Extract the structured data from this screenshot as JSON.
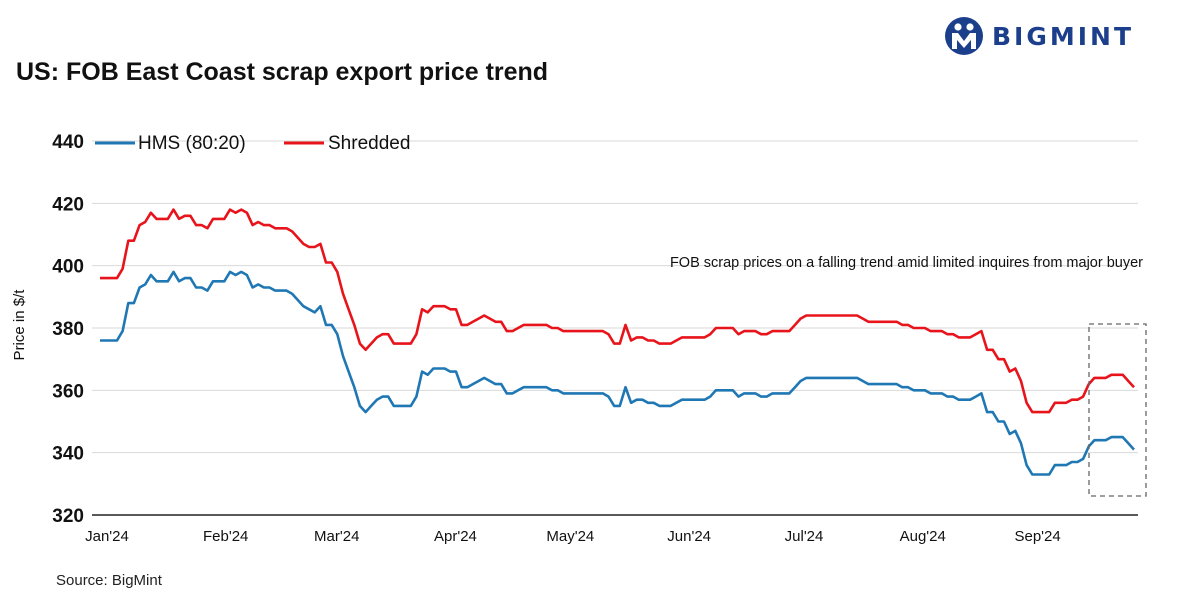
{
  "brand": {
    "name": "BIGMINT",
    "color": "#1c3f8c"
  },
  "title": "US: FOB East Coast scrap export price trend",
  "source": "Source: BigMint",
  "chart_data": {
    "type": "line",
    "title": "US: FOB East Coast scrap export price trend",
    "xlabel": "",
    "ylabel": "Price in $/t",
    "ylim": [
      320,
      440
    ],
    "yticks": [
      320,
      340,
      360,
      380,
      400,
      420,
      440
    ],
    "grid": true,
    "legend_position": "top-left",
    "x_tick_labels": [
      "Jan'24",
      "Feb'24",
      "Mar'24",
      "Apr'24",
      "May'24",
      "Jun'24",
      "Jul'24",
      "Aug'24",
      "Sep'24"
    ],
    "annotation": "FOB scrap prices on a falling trend amid limited inquires from major buyer",
    "series": [
      {
        "name": "HMS (80:20)",
        "color": "#1f77b4",
        "values": [
          376,
          376,
          376,
          376,
          379,
          388,
          388,
          393,
          394,
          397,
          395,
          395,
          395,
          398,
          395,
          396,
          396,
          393,
          393,
          392,
          395,
          395,
          395,
          398,
          397,
          398,
          397,
          393,
          394,
          393,
          393,
          392,
          392,
          392,
          391,
          389,
          387,
          386,
          385,
          387,
          381,
          381,
          378,
          371,
          366,
          361,
          355,
          353,
          355,
          357,
          358,
          358,
          355,
          355,
          355,
          355,
          358,
          366,
          365,
          367,
          367,
          367,
          366,
          366,
          361,
          361,
          362,
          363,
          364,
          363,
          362,
          362,
          359,
          359,
          360,
          361,
          361,
          361,
          361,
          361,
          360,
          360,
          359,
          359,
          359,
          359,
          359,
          359,
          359,
          359,
          358,
          355,
          355,
          361,
          356,
          357,
          357,
          356,
          356,
          355,
          355,
          355,
          356,
          357,
          357,
          357,
          357,
          357,
          358,
          360,
          360,
          360,
          360,
          358,
          359,
          359,
          359,
          358,
          358,
          359,
          359,
          359,
          359,
          361,
          363,
          364,
          364,
          364,
          364,
          364,
          364,
          364,
          364,
          364,
          364,
          363,
          362,
          362,
          362,
          362,
          362,
          362,
          361,
          361,
          360,
          360,
          360,
          359,
          359,
          359,
          358,
          358,
          357,
          357,
          357,
          358,
          359,
          353,
          353,
          350,
          350,
          346,
          347,
          343,
          336,
          333,
          333,
          333,
          333,
          336,
          336,
          336,
          337,
          337,
          338,
          342,
          344,
          344,
          344,
          345,
          345,
          345,
          343,
          341
        ]
      },
      {
        "name": "Shredded",
        "color": "#e8141b",
        "values": [
          396,
          396,
          396,
          396,
          399,
          408,
          408,
          413,
          414,
          417,
          415,
          415,
          415,
          418,
          415,
          416,
          416,
          413,
          413,
          412,
          415,
          415,
          415,
          418,
          417,
          418,
          417,
          413,
          414,
          413,
          413,
          412,
          412,
          412,
          411,
          409,
          407,
          406,
          406,
          407,
          401,
          401,
          398,
          391,
          386,
          381,
          375,
          373,
          375,
          377,
          378,
          378,
          375,
          375,
          375,
          375,
          378,
          386,
          385,
          387,
          387,
          387,
          386,
          386,
          381,
          381,
          382,
          383,
          384,
          383,
          382,
          382,
          379,
          379,
          380,
          381,
          381,
          381,
          381,
          381,
          380,
          380,
          379,
          379,
          379,
          379,
          379,
          379,
          379,
          379,
          378,
          375,
          375,
          381,
          376,
          377,
          377,
          376,
          376,
          375,
          375,
          375,
          376,
          377,
          377,
          377,
          377,
          377,
          378,
          380,
          380,
          380,
          380,
          378,
          379,
          379,
          379,
          378,
          378,
          379,
          379,
          379,
          379,
          381,
          383,
          384,
          384,
          384,
          384,
          384,
          384,
          384,
          384,
          384,
          384,
          383,
          382,
          382,
          382,
          382,
          382,
          382,
          381,
          381,
          380,
          380,
          380,
          379,
          379,
          379,
          378,
          378,
          377,
          377,
          377,
          378,
          379,
          373,
          373,
          370,
          370,
          366,
          367,
          363,
          356,
          353,
          353,
          353,
          353,
          356,
          356,
          356,
          357,
          357,
          358,
          362,
          364,
          364,
          364,
          365,
          365,
          365,
          363,
          361
        ]
      }
    ]
  }
}
